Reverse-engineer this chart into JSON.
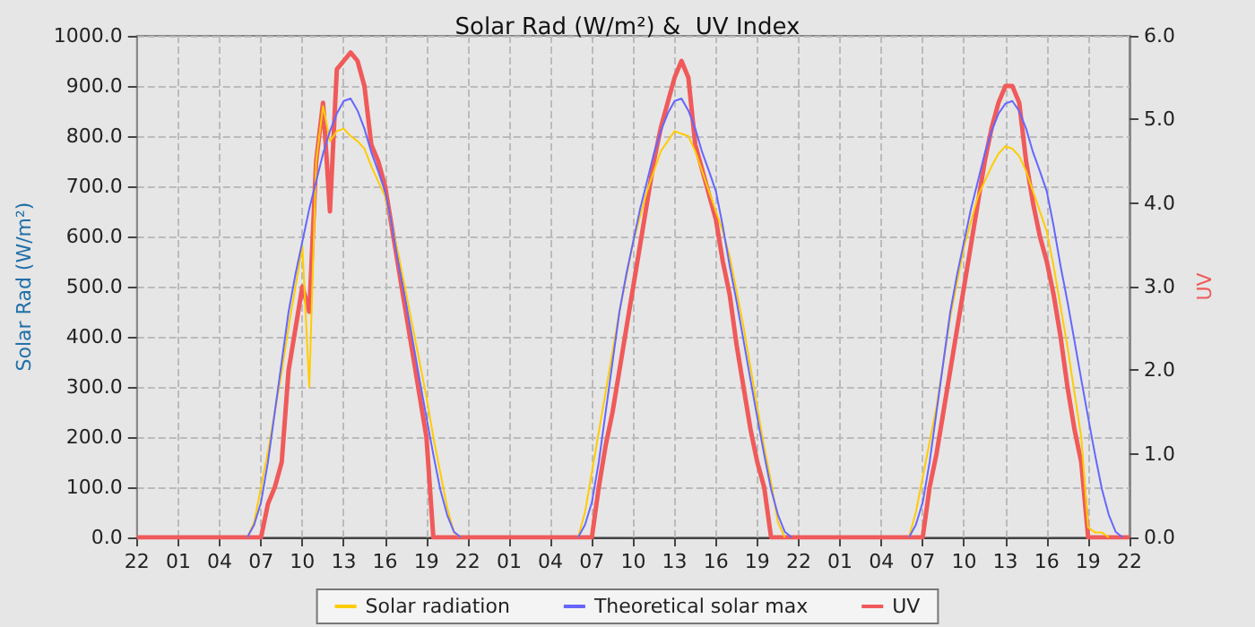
{
  "chart_data": {
    "type": "line",
    "title": "Solar Rad (W/m²) &  UV Index",
    "ylabel": "Solar Rad (W/m²)",
    "y2label": "UV",
    "categories": [
      "22",
      null,
      null,
      null,
      null,
      null,
      "01",
      null,
      null,
      null,
      null,
      null,
      "04",
      null,
      null,
      null,
      null,
      null,
      "07",
      null,
      null,
      null,
      null,
      null,
      "10",
      null,
      null,
      null,
      null,
      null,
      "13",
      null,
      null,
      null,
      null,
      null,
      "16",
      null,
      null,
      null,
      null,
      null,
      "19",
      null,
      null,
      null,
      null,
      null,
      "22",
      null,
      null,
      null,
      null,
      null,
      "01",
      null,
      null,
      null,
      null,
      null,
      "04",
      null,
      null,
      null,
      null,
      null,
      "07",
      null,
      null,
      null,
      null,
      null,
      "10",
      null,
      null,
      null,
      null,
      null,
      "13",
      null,
      null,
      null,
      null,
      null,
      "16",
      null,
      null,
      null,
      null,
      null,
      "19",
      null,
      null,
      null,
      null,
      null,
      "22",
      null,
      null,
      null,
      null,
      null,
      "01",
      null,
      null,
      null,
      null,
      null,
      "04",
      null,
      null,
      null,
      null,
      null,
      "07",
      null,
      null,
      null,
      null,
      null,
      "10",
      null,
      null,
      null,
      null,
      null,
      "13",
      null,
      null,
      null,
      null,
      null,
      "16",
      null,
      null,
      null,
      null,
      null,
      "19",
      null,
      null,
      null,
      null,
      null,
      "22"
    ],
    "ylim": [
      0,
      1000
    ],
    "yticks": [
      {
        "value": 0,
        "label": "0.0"
      },
      {
        "value": 100,
        "label": "100.0"
      },
      {
        "value": 200,
        "label": "200.0"
      },
      {
        "value": 300,
        "label": "300.0"
      },
      {
        "value": 400,
        "label": "400.0"
      },
      {
        "value": 500,
        "label": "500.0"
      },
      {
        "value": 600,
        "label": "600.0"
      },
      {
        "value": 700,
        "label": "700.0"
      },
      {
        "value": 800,
        "label": "800.0"
      },
      {
        "value": 900,
        "label": "900.0"
      },
      {
        "value": 1000,
        "label": "1000.0"
      }
    ],
    "y2lim": [
      0,
      6
    ],
    "y2ticks": [
      {
        "value": 0,
        "label": "0.0"
      },
      {
        "value": 1,
        "label": "1.0"
      },
      {
        "value": 2,
        "label": "2.0"
      },
      {
        "value": 3,
        "label": "3.0"
      },
      {
        "value": 4,
        "label": "4.0"
      },
      {
        "value": 5,
        "label": "5.0"
      },
      {
        "value": 6,
        "label": "6.0"
      }
    ],
    "grid": true,
    "legend": "bottom",
    "series": [
      {
        "name": "Solar radiation",
        "color": "#ffcc00",
        "values": [
          null,
          null,
          null,
          null,
          null,
          null,
          null,
          null,
          null,
          null,
          null,
          null,
          null,
          null,
          null,
          null,
          0,
          30,
          100,
          170,
          250,
          330,
          420,
          500,
          580,
          300,
          750,
          860,
          790,
          810,
          815,
          800,
          790,
          775,
          740,
          710,
          680,
          620,
          560,
          490,
          420,
          350,
          280,
          200,
          130,
          60,
          10,
          0,
          null,
          null,
          null,
          null,
          null,
          null,
          null,
          null,
          null,
          null,
          null,
          null,
          null,
          null,
          null,
          null,
          0,
          50,
          130,
          210,
          290,
          370,
          450,
          520,
          590,
          640,
          690,
          730,
          770,
          790,
          810,
          805,
          800,
          770,
          730,
          690,
          650,
          610,
          560,
          490,
          420,
          340,
          260,
          180,
          110,
          30,
          0,
          null,
          null,
          null,
          null,
          null,
          null,
          null,
          null,
          null,
          null,
          null,
          null,
          null,
          null,
          null,
          null,
          null,
          0,
          50,
          120,
          190,
          260,
          350,
          440,
          510,
          580,
          630,
          680,
          710,
          740,
          765,
          780,
          775,
          760,
          730,
          690,
          650,
          610,
          540,
          460,
          380,
          290,
          200,
          20,
          10,
          10,
          0,
          null,
          null,
          null
        ]
      },
      {
        "name": "Theoretical solar max",
        "color": "#6666ff",
        "values": [
          null,
          null,
          null,
          null,
          null,
          null,
          null,
          null,
          null,
          null,
          null,
          null,
          null,
          null,
          null,
          null,
          0,
          25,
          70,
          150,
          250,
          350,
          450,
          525,
          590,
          655,
          710,
          765,
          810,
          845,
          870,
          875,
          851,
          815,
          768,
          730,
          690,
          620,
          541,
          470,
          393,
          315,
          239,
          165,
          96,
          45,
          11,
          0,
          null,
          null,
          null,
          null,
          null,
          null,
          null,
          null,
          null,
          null,
          null,
          null,
          null,
          null,
          null,
          null,
          0,
          25,
          70,
          150,
          250,
          350,
          450,
          525,
          590,
          655,
          710,
          765,
          810,
          845,
          870,
          875,
          851,
          815,
          768,
          730,
          690,
          620,
          541,
          470,
          393,
          315,
          239,
          165,
          96,
          45,
          11,
          0,
          null,
          null,
          null,
          null,
          null,
          null,
          null,
          null,
          null,
          null,
          null,
          null,
          null,
          null,
          null,
          null,
          0,
          25,
          70,
          150,
          250,
          350,
          450,
          525,
          590,
          655,
          710,
          765,
          810,
          845,
          865,
          870,
          850,
          815,
          768,
          730,
          690,
          620,
          541,
          470,
          393,
          315,
          239,
          165,
          96,
          45,
          11,
          0,
          null
        ]
      },
      {
        "name": "UV",
        "color": "#f05a5a",
        "axis": "y2",
        "values": [
          0,
          0,
          0,
          0,
          0,
          0,
          0,
          0,
          0,
          0,
          0,
          0,
          0,
          0,
          0,
          0,
          0,
          0,
          0,
          0.4,
          0.6,
          0.9,
          2.0,
          2.5,
          3.0,
          2.7,
          4.5,
          5.2,
          3.9,
          5.6,
          5.7,
          5.8,
          5.7,
          5.4,
          4.7,
          4.5,
          4.2,
          3.7,
          3.2,
          2.7,
          2.2,
          1.7,
          1.2,
          0,
          0,
          0,
          0,
          0,
          0,
          0,
          0,
          0,
          0,
          0,
          0,
          0,
          0,
          0,
          0,
          0,
          0,
          0,
          0,
          0,
          0,
          0,
          0,
          0.6,
          1.1,
          1.5,
          2.0,
          2.5,
          3.0,
          3.5,
          4.0,
          4.5,
          4.9,
          5.2,
          5.5,
          5.7,
          5.5,
          4.7,
          4.4,
          4.1,
          3.8,
          3.3,
          2.9,
          2.3,
          1.8,
          1.3,
          0.9,
          0.6,
          0,
          0,
          0,
          0,
          0,
          0,
          0,
          0,
          0,
          0,
          0,
          0,
          0,
          0,
          0,
          0,
          0,
          0,
          0,
          0,
          0,
          0,
          0,
          0.6,
          1.0,
          1.5,
          2.0,
          2.5,
          3.0,
          3.5,
          4.0,
          4.5,
          4.9,
          5.2,
          5.4,
          5.4,
          5.2,
          4.5,
          4.0,
          3.6,
          3.3,
          2.9,
          2.4,
          1.8,
          1.3,
          0.9,
          0,
          0,
          0,
          0,
          0,
          0,
          0
        ]
      }
    ]
  }
}
